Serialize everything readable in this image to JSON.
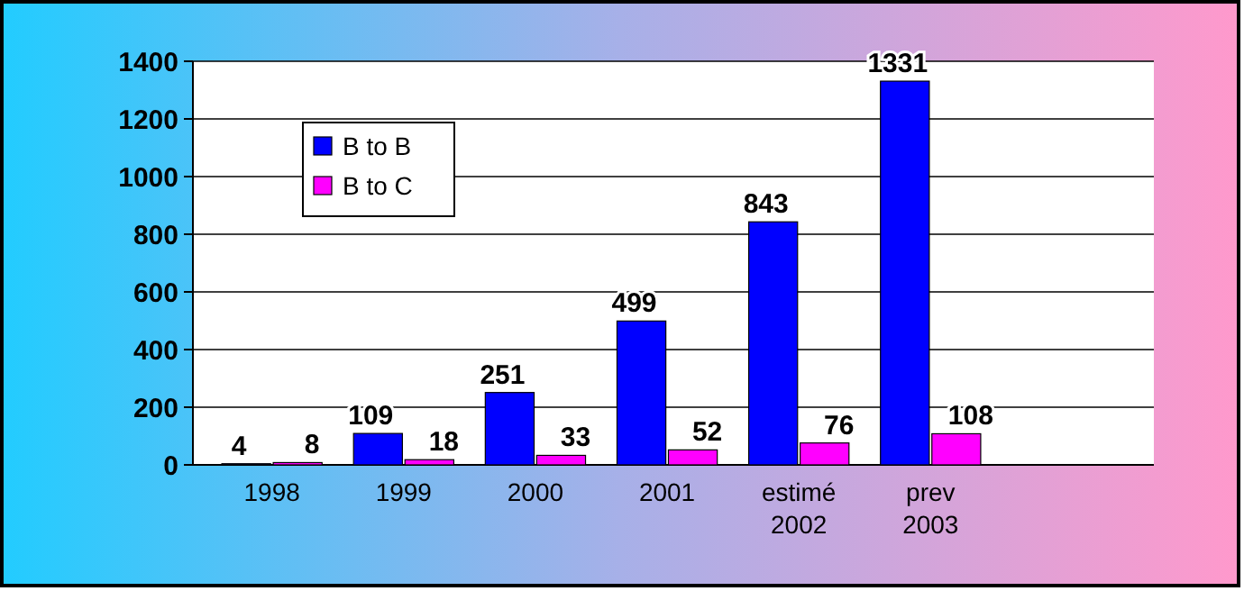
{
  "chart_data": {
    "type": "bar",
    "categories": [
      "1998",
      "1999",
      "2000",
      "2001",
      "estimé\n2002",
      "prev\n2003"
    ],
    "series": [
      {
        "name": "B to B",
        "color": "#0000ff",
        "values": [
          4,
          109,
          251,
          499,
          843,
          1331
        ]
      },
      {
        "name": "B to C",
        "color": "#ff00ff",
        "values": [
          8,
          18,
          33,
          52,
          76,
          108
        ]
      }
    ],
    "ylim": [
      0,
      1400
    ],
    "yticks": [
      0,
      200,
      400,
      600,
      800,
      1000,
      1200,
      1400
    ],
    "grid": "y",
    "legend": "top left",
    "data_labels": true
  }
}
